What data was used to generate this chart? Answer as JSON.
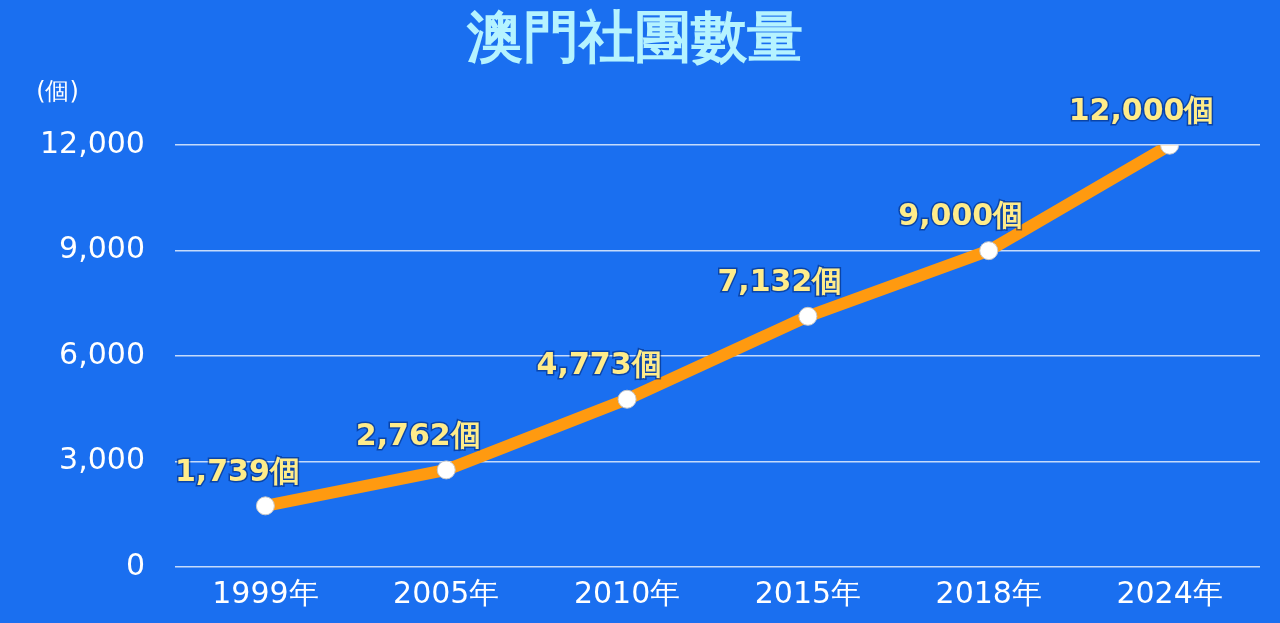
{
  "chart_data": {
    "type": "line",
    "title": "澳門社團數量",
    "ylabel": "(個)",
    "categories": [
      "1999年",
      "2005年",
      "2010年",
      "2015年",
      "2018年",
      "2024年"
    ],
    "values": [
      1739,
      2762,
      4773,
      7132,
      9000,
      12000
    ],
    "value_labels": [
      "1,739個",
      "2,762個",
      "4,773個",
      "7,132個",
      "9,000個",
      "12,000個"
    ],
    "color": "#ff9a10",
    "ylim": [
      0,
      12000
    ],
    "yticks": [
      {
        "value": 0,
        "label": "0"
      },
      {
        "value": 3000,
        "label": "3,000"
      },
      {
        "value": 6000,
        "label": "6,000"
      },
      {
        "value": 9000,
        "label": "9,000"
      },
      {
        "value": 12000,
        "label": "12,000"
      }
    ],
    "grid": "y",
    "legend": false,
    "marker": "circle",
    "line_style": "solid"
  }
}
